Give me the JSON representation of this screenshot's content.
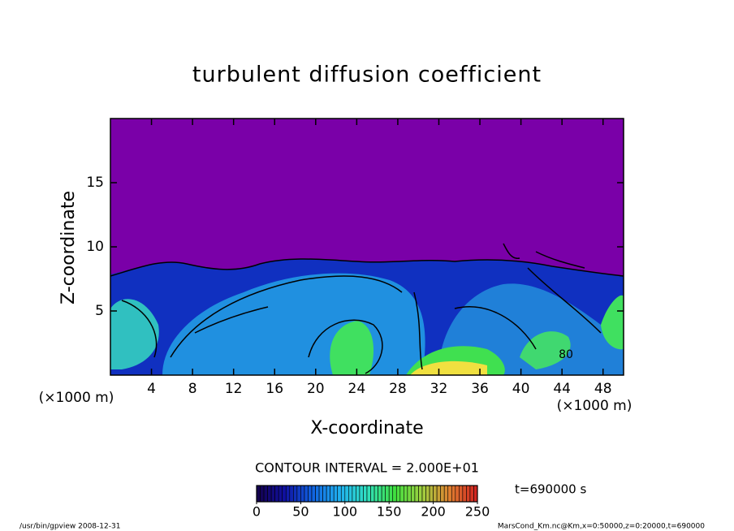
{
  "chart_data": {
    "type": "contour",
    "title": "turbulent diffusion coefficient",
    "xlabel": "X-coordinate",
    "ylabel": "Z-coordinate",
    "x_unit": "(×1000 m)",
    "y_unit": "(×1000 m)",
    "xlim": [
      0,
      50
    ],
    "xticks": [
      4,
      8,
      12,
      16,
      20,
      24,
      28,
      32,
      36,
      40,
      44,
      48
    ],
    "ylim": [
      0,
      20
    ],
    "yticks": [
      5,
      10,
      15
    ],
    "contour_interval": "CONTOUR INTERVAL = 2.000E+01",
    "contour_label": 80,
    "time_label": "t=690000 s",
    "clim": [
      0,
      250
    ],
    "cticks": [
      0,
      50,
      100,
      150,
      200,
      250
    ],
    "colormap": [
      "#14004a",
      "#1010a0",
      "#1060e0",
      "#20b0f0",
      "#30e0c0",
      "#40e040",
      "#a0d040",
      "#e08030",
      "#d02020"
    ],
    "footer_left": "/usr/bin/gpview   2008-12-31",
    "footer_right": "MarsCond_Km.nc@Km,x=0:50000,z=0:20000,t=690000"
  }
}
